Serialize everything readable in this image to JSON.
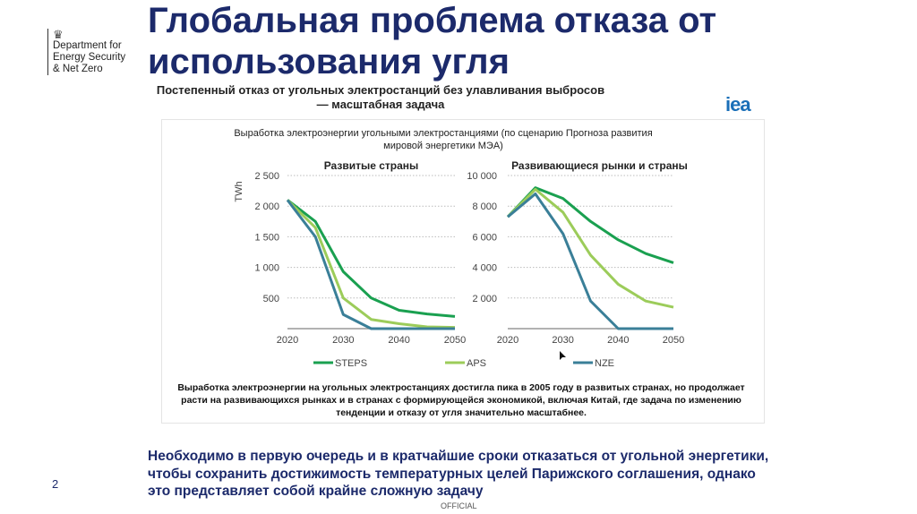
{
  "title": "Глобальная проблема отказа от использования угля",
  "logo": {
    "text": "Department for Energy Security & Net Zero",
    "lines": [
      "Department for",
      "Energy Security",
      "& Net Zero"
    ]
  },
  "subtitle": "Постепенный отказ от угольных электростанций без улавливания выбросов — масштабная задача",
  "iea_logo": "iea",
  "caption": "Выработка электроэнергии на угольных электростанциях достигла пика в 2005 году в развитых странах, но продолжает расти на развивающихся рынках и в странах с формирующейся экономикой, включая Китай, где задача по изменению тенденции и отказу от угля значительно масштабнее.",
  "bottom_text": "Необходимо в первую очередь и в кратчайшие сроки отказаться от угольной энергетики, чтобы сохранить достижимость температурных целей Парижского соглашения, однако это представляет собой крайне сложную задачу",
  "page_number": "2",
  "footer": "OFFICIAL",
  "chart_data": {
    "title": "Выработка электроэнергии угольными электростанциями (по сценарию Прогноза развития мировой энергетики МЭА)",
    "ylabel": "TWh",
    "legend": {
      "placement": "bottom",
      "entries": [
        {
          "name": "STEPS",
          "color": "#1aa050"
        },
        {
          "name": "APS",
          "color": "#9ccc5a"
        },
        {
          "name": "NZE",
          "color": "#3a7f98"
        }
      ]
    },
    "panels": [
      {
        "type": "line",
        "title": "Развитые страны",
        "x": [
          2020,
          2025,
          2030,
          2035,
          2040,
          2045,
          2050
        ],
        "xticks": [
          "2020",
          "2030",
          "2040",
          "2050"
        ],
        "ylim": [
          0,
          2500
        ],
        "yticks": [
          "500",
          "1 000",
          "1 500",
          "2 000",
          "2 500"
        ],
        "grid": true,
        "series": [
          {
            "name": "STEPS",
            "values": [
              2100,
              1750,
              930,
              500,
              300,
              240,
              200
            ]
          },
          {
            "name": "APS",
            "values": [
              2100,
              1650,
              500,
              150,
              80,
              30,
              20
            ]
          },
          {
            "name": "NZE",
            "values": [
              2100,
              1500,
              230,
              0,
              0,
              0,
              0
            ]
          }
        ]
      },
      {
        "type": "line",
        "title": "Развивающиеся рынки и страны",
        "x": [
          2020,
          2025,
          2030,
          2035,
          2040,
          2045,
          2050
        ],
        "xticks": [
          "2020",
          "2030",
          "2040",
          "2050"
        ],
        "ylim": [
          0,
          10000
        ],
        "yticks": [
          "2 000",
          "4 000",
          "6 000",
          "8 000",
          "10 000"
        ],
        "grid": true,
        "series": [
          {
            "name": "STEPS",
            "values": [
              7300,
              9200,
              8500,
              7000,
              5800,
              4900,
              4300
            ]
          },
          {
            "name": "APS",
            "values": [
              7300,
              9100,
              7600,
              4800,
              2900,
              1800,
              1400
            ]
          },
          {
            "name": "NZE",
            "values": [
              7300,
              8800,
              6200,
              1800,
              0,
              0,
              0
            ]
          }
        ]
      }
    ]
  }
}
